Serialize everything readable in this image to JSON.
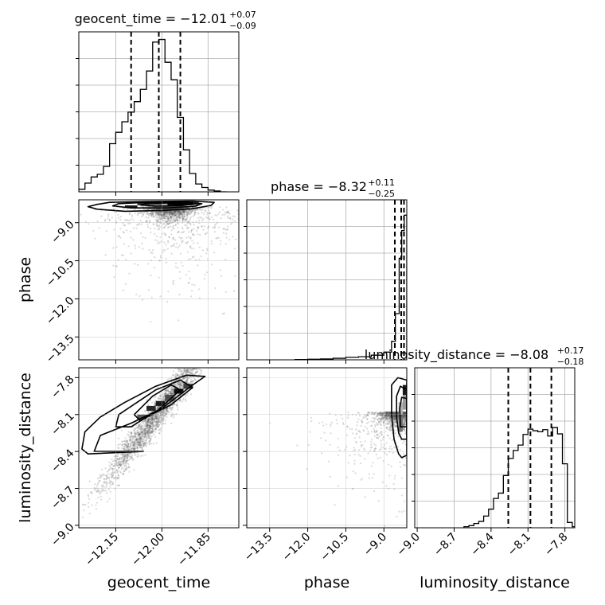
{
  "chart_data": {
    "type": "corner",
    "parameters": [
      "geocent_time",
      "phase",
      "luminosity_distance"
    ],
    "colors": {
      "ink": "#000000",
      "grid": "#b0b0b0",
      "scatter": "#555555"
    },
    "panels": {
      "geocent_time": {
        "range": [
          -12.27,
          -11.75
        ],
        "ticks": [
          -12.15,
          -12.0,
          -11.85
        ],
        "tick_labels": [
          "−12.15",
          "−12.00",
          "−11.85"
        ],
        "axis_label": "geocent_time",
        "title": {
          "prefix": "geocent_time = ",
          "value": "−12.01",
          "upper": "+0.07",
          "lower": "−0.09"
        },
        "quantiles": [
          -12.1,
          -12.01,
          -11.94
        ],
        "hist_edges": [
          -12.27,
          -12.25,
          -12.23,
          -12.21,
          -12.19,
          -12.17,
          -12.15,
          -12.13,
          -12.11,
          -12.09,
          -12.07,
          -12.05,
          -12.03,
          -12.01,
          -11.99,
          -11.97,
          -11.95,
          -11.93,
          -11.91,
          -11.89,
          -11.87,
          -11.85,
          -11.83,
          -11.81,
          -11.79
        ],
        "hist_counts": [
          3,
          10,
          17,
          20,
          29,
          55,
          68,
          80,
          91,
          103,
          117,
          138,
          171,
          174,
          148,
          128,
          85,
          48,
          21,
          9,
          5,
          2,
          1,
          0
        ]
      },
      "phase": {
        "range": [
          -14.4,
          -8.1
        ],
        "ticks": [
          -13.5,
          -12.0,
          -10.5,
          -9.0
        ],
        "tick_labels": [
          "−13.5",
          "−12.0",
          "−10.5",
          "−9.0"
        ],
        "axis_label": "phase",
        "title": {
          "prefix": "phase = ",
          "value": "−8.32",
          "upper": "+0.11",
          "lower": "−0.25"
        },
        "quantiles": [
          -8.57,
          -8.32,
          -8.21
        ],
        "hist_edges": [
          -12.5,
          -12.0,
          -11.5,
          -11.0,
          -10.5,
          -10.0,
          -9.5,
          -9.0,
          -8.7,
          -8.55,
          -8.4,
          -8.3,
          -8.2,
          -8.1
        ],
        "hist_counts": [
          1,
          2,
          3,
          5,
          8,
          10,
          15,
          25,
          60,
          150,
          330,
          420,
          470
        ],
        "hist_ymax": 520
      },
      "luminosity_distance": {
        "range": [
          -9.02,
          -7.72
        ],
        "ticks": [
          -9.0,
          -8.7,
          -8.4,
          -8.1,
          -7.8
        ],
        "tick_labels": [
          "−9.0",
          "−8.7",
          "−8.4",
          "−8.1",
          "−7.8"
        ],
        "axis_label": "luminosity_distance",
        "title": {
          "prefix": "luminosity_distance = ",
          "value": "−8.08",
          "upper": "+0.17",
          "lower": "−0.18"
        },
        "quantiles": [
          -8.26,
          -8.08,
          -7.91
        ],
        "hist_edges": [
          -8.62,
          -8.58,
          -8.54,
          -8.5,
          -8.46,
          -8.42,
          -8.38,
          -8.34,
          -8.3,
          -8.26,
          -8.22,
          -8.18,
          -8.14,
          -8.1,
          -8.06,
          -8.02,
          -7.98,
          -7.94,
          -7.9,
          -7.86,
          -7.82,
          -7.78,
          -7.74,
          -7.7
        ],
        "hist_counts": [
          2,
          4,
          8,
          12,
          22,
          35,
          55,
          65,
          98,
          130,
          145,
          155,
          175,
          185,
          182,
          180,
          184,
          172,
          188,
          176,
          120,
          10,
          2
        ],
        "hist_ymax": 300
      }
    },
    "pairs": [
      {
        "x": "geocent_time",
        "y": "phase",
        "seed": 11,
        "n_points": 1900,
        "sample_model": "cluster",
        "center": [
          -11.97,
          -8.35
        ],
        "contours": [
          [
            [
              -12.21,
              -8.28
            ],
            [
              -12.17,
              -8.2
            ],
            [
              -12.05,
              -8.17
            ],
            [
              -11.9,
              -8.15
            ],
            [
              -11.83,
              -8.2
            ],
            [
              -11.84,
              -8.32
            ],
            [
              -11.9,
              -8.45
            ],
            [
              -12.0,
              -8.52
            ],
            [
              -12.12,
              -8.55
            ],
            [
              -12.21,
              -8.47
            ],
            [
              -12.24,
              -8.37
            ]
          ],
          [
            [
              -12.14,
              -8.25
            ],
            [
              -12.05,
              -8.2
            ],
            [
              -11.93,
              -8.19
            ],
            [
              -11.87,
              -8.25
            ],
            [
              -11.89,
              -8.35
            ],
            [
              -11.98,
              -8.42
            ],
            [
              -12.1,
              -8.42
            ],
            [
              -12.16,
              -8.34
            ]
          ],
          [
            [
              -12.05,
              -8.24
            ],
            [
              -11.95,
              -8.22
            ],
            [
              -11.9,
              -8.27
            ],
            [
              -11.94,
              -8.33
            ],
            [
              -12.02,
              -8.35
            ],
            [
              -12.07,
              -8.3
            ]
          ],
          [
            [
              -11.98,
              -8.24
            ],
            [
              -11.92,
              -8.24
            ],
            [
              -11.92,
              -8.29
            ],
            [
              -11.98,
              -8.29
            ]
          ]
        ],
        "density_cells": [
          {
            "x": [
              -12.08,
              -12.04
            ],
            "y": [
              -8.32,
              -8.17
            ],
            "shade": 0.75
          },
          {
            "x": [
              -12.04,
              -12.0
            ],
            "y": [
              -8.32,
              -8.17
            ],
            "shade": 0.6
          },
          {
            "x": [
              -12.0,
              -11.96
            ],
            "y": [
              -8.32,
              -8.17
            ],
            "shade": 0.3
          },
          {
            "x": [
              -11.96,
              -11.92
            ],
            "y": [
              -8.32,
              -8.17
            ],
            "shade": 0.25
          },
          {
            "x": [
              -12.12,
              -12.08
            ],
            "y": [
              -8.4,
              -8.32
            ],
            "shade": 0.9
          },
          {
            "x": [
              -11.92,
              -11.88
            ],
            "y": [
              -8.32,
              -8.17
            ],
            "shade": 0.7
          }
        ]
      },
      {
        "x": "geocent_time",
        "y": "luminosity_distance",
        "seed": 23,
        "n_points": 2400,
        "sample_model": "linear",
        "center": [
          -12.01,
          -8.08
        ],
        "slope": 3.2,
        "contours": [
          [
            [
              -12.22,
              -8.4
            ],
            [
              -12.2,
              -8.27
            ],
            [
              -12.1,
              -8.17
            ],
            [
              -12.0,
              -8.05
            ],
            [
              -11.9,
              -7.86
            ],
            [
              -11.86,
              -7.79
            ],
            [
              -11.92,
              -7.78
            ],
            [
              -12.02,
              -7.87
            ],
            [
              -12.12,
              -8.0
            ],
            [
              -12.2,
              -8.12
            ],
            [
              -12.25,
              -8.24
            ],
            [
              -12.26,
              -8.38
            ],
            [
              -12.24,
              -8.42
            ],
            [
              -12.06,
              -8.4
            ]
          ],
          [
            [
              -12.1,
              -8.2
            ],
            [
              -12.05,
              -8.12
            ],
            [
              -11.97,
              -8.02
            ],
            [
              -11.9,
              -7.88
            ],
            [
              -11.94,
              -7.82
            ],
            [
              -12.02,
              -7.9
            ],
            [
              -12.08,
              -8.0
            ],
            [
              -12.14,
              -8.1
            ],
            [
              -12.15,
              -8.2
            ]
          ],
          [
            [
              -12.07,
              -8.15
            ],
            [
              -12.02,
              -8.08
            ],
            [
              -11.94,
              -7.9
            ],
            [
              -11.97,
              -7.86
            ],
            [
              -12.03,
              -7.95
            ],
            [
              -12.09,
              -8.1
            ]
          ]
        ],
        "density_cells": [
          {
            "x": [
              -12.08,
              -12.05
            ],
            "y": [
              -8.14,
              -8.1
            ],
            "shade": 0.65
          },
          {
            "x": [
              -12.05,
              -12.02
            ],
            "y": [
              -8.07,
              -8.03
            ],
            "shade": 0.85
          },
          {
            "x": [
              -12.02,
              -11.99
            ],
            "y": [
              -8.03,
              -7.99
            ],
            "shade": 0.9
          },
          {
            "x": [
              -11.99,
              -11.96
            ],
            "y": [
              -7.99,
              -7.94
            ],
            "shade": 0.7
          },
          {
            "x": [
              -11.96,
              -11.93
            ],
            "y": [
              -7.93,
              -7.89
            ],
            "shade": 0.95
          },
          {
            "x": [
              -11.93,
              -11.9
            ],
            "y": [
              -7.89,
              -7.85
            ],
            "shade": 0.75
          }
        ]
      },
      {
        "x": "phase",
        "y": "luminosity_distance",
        "seed": 37,
        "n_points": 1900,
        "sample_model": "cluster",
        "center": [
          -8.35,
          -8.08
        ],
        "contours": [
          [
            [
              -8.1,
              -7.82
            ],
            [
              -8.45,
              -7.8
            ],
            [
              -8.7,
              -7.86
            ],
            [
              -8.7,
              -8.1
            ],
            [
              -8.6,
              -8.3
            ],
            [
              -8.42,
              -8.42
            ],
            [
              -8.3,
              -8.45
            ],
            [
              -8.1,
              -8.43
            ]
          ],
          [
            [
              -8.1,
              -7.9
            ],
            [
              -8.35,
              -7.87
            ],
            [
              -8.5,
              -7.95
            ],
            [
              -8.5,
              -8.12
            ],
            [
              -8.42,
              -8.25
            ],
            [
              -8.3,
              -8.3
            ],
            [
              -8.1,
              -8.3
            ]
          ],
          [
            [
              -8.1,
              -7.97
            ],
            [
              -8.3,
              -7.96
            ],
            [
              -8.38,
              -8.05
            ],
            [
              -8.35,
              -8.2
            ],
            [
              -8.1,
              -8.2
            ]
          ]
        ],
        "density_cells": [
          {
            "x": [
              -8.26,
              -8.1
            ],
            "y": [
              -7.94,
              -7.86
            ],
            "shade": 0.9
          },
          {
            "x": [
              -8.26,
              -8.1
            ],
            "y": [
              -8.06,
              -7.94
            ],
            "shade": 0.4
          },
          {
            "x": [
              -8.42,
              -8.26
            ],
            "y": [
              -8.1,
              -8.0
            ],
            "shade": 0.3
          },
          {
            "x": [
              -8.42,
              -8.26
            ],
            "y": [
              -8.24,
              -8.12
            ],
            "shade": 0.55
          }
        ]
      }
    ]
  }
}
